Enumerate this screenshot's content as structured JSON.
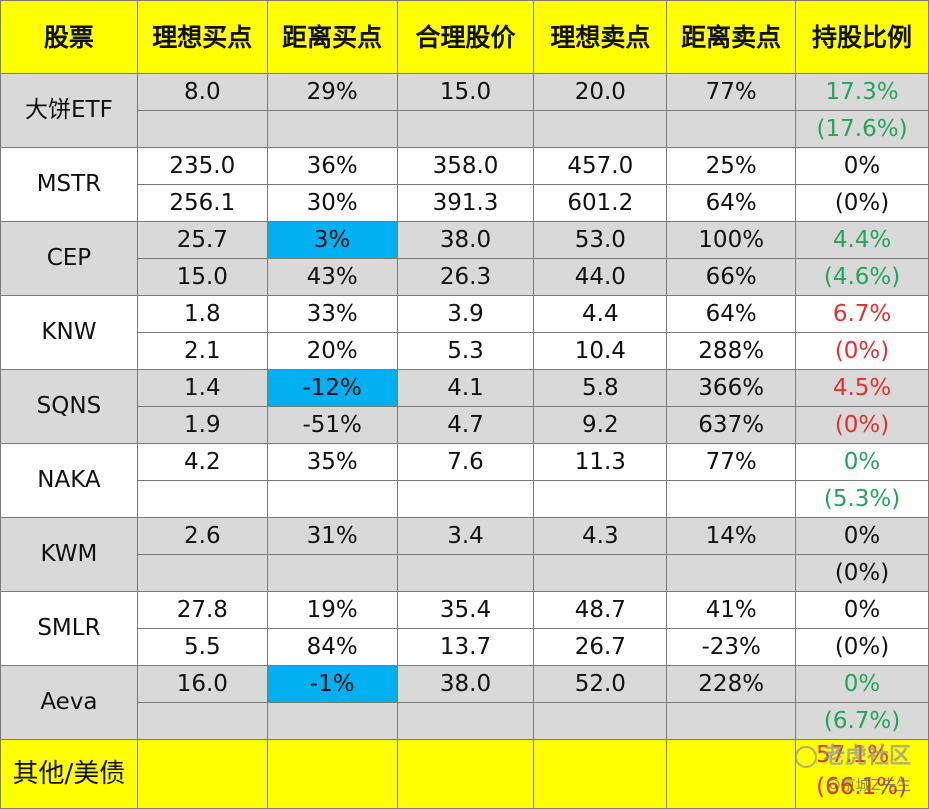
{
  "header": [
    "股票",
    "理想买点",
    "距离买点",
    "合理股价",
    "理想卖点",
    "距离卖点",
    "持股比例"
  ],
  "stocks": [
    {
      "name": "大饼ETF",
      "shade": "grey",
      "cn": true,
      "r1": [
        "8.0",
        "29%",
        "15.0",
        "20.0",
        "77%"
      ],
      "r2": [
        "",
        "",
        "",
        "",
        ""
      ],
      "hold": "17.3%",
      "hold_prev": "(17.6%)",
      "hold_color": "green",
      "hl": false
    },
    {
      "name": "MSTR",
      "shade": "white",
      "cn": false,
      "r1": [
        "235.0",
        "36%",
        "358.0",
        "457.0",
        "25%"
      ],
      "r2": [
        "256.1",
        "30%",
        "391.3",
        "601.2",
        "64%"
      ],
      "hold": "0%",
      "hold_prev": "(0%)",
      "hold_color": "black",
      "hl": false
    },
    {
      "name": "CEP",
      "shade": "grey",
      "cn": false,
      "r1": [
        "25.7",
        "3%",
        "38.0",
        "53.0",
        "100%"
      ],
      "r2": [
        "15.0",
        "43%",
        "26.3",
        "44.0",
        "66%"
      ],
      "hold": "4.4%",
      "hold_prev": "(4.6%)",
      "hold_color": "green",
      "hl": true
    },
    {
      "name": "KNW",
      "shade": "white",
      "cn": false,
      "r1": [
        "1.8",
        "33%",
        "3.9",
        "4.4",
        "64%"
      ],
      "r2": [
        "2.1",
        "20%",
        "5.3",
        "10.4",
        "288%"
      ],
      "hold": "6.7%",
      "hold_prev": "(0%)",
      "hold_color": "red",
      "hl": false
    },
    {
      "name": "SQNS",
      "shade": "grey",
      "cn": false,
      "r1": [
        "1.4",
        "-12%",
        "4.1",
        "5.8",
        "366%"
      ],
      "r2": [
        "1.9",
        "-51%",
        "4.7",
        "9.2",
        "637%"
      ],
      "hold": "4.5%",
      "hold_prev": "(0%)",
      "hold_color": "red",
      "hl": true
    },
    {
      "name": "NAKA",
      "shade": "white",
      "cn": false,
      "r1": [
        "4.2",
        "35%",
        "7.6",
        "11.3",
        "77%"
      ],
      "r2": [
        "",
        "",
        "",
        "",
        ""
      ],
      "hold": "0%",
      "hold_prev": "(5.3%)",
      "hold_color": "green",
      "hl": false
    },
    {
      "name": "KWM",
      "shade": "grey",
      "cn": false,
      "r1": [
        "2.6",
        "31%",
        "3.4",
        "4.3",
        "14%"
      ],
      "r2": [
        "",
        "",
        "",
        "",
        ""
      ],
      "hold": "0%",
      "hold_prev": "(0%)",
      "hold_color": "black",
      "hl": false
    },
    {
      "name": "SMLR",
      "shade": "white",
      "cn": false,
      "r1": [
        "27.8",
        "19%",
        "35.4",
        "48.7",
        "41%"
      ],
      "r2": [
        "5.5",
        "84%",
        "13.7",
        "26.7",
        "-23%"
      ],
      "hold": "0%",
      "hold_prev": "(0%)",
      "hold_color": "black",
      "hl": false
    },
    {
      "name": "Aeva",
      "shade": "grey",
      "cn": false,
      "r1": [
        "16.0",
        "-1%",
        "38.0",
        "52.0",
        "228%"
      ],
      "r2": [
        "",
        "",
        "",
        "",
        ""
      ],
      "hold": "0%",
      "hold_prev": "(6.7%)",
      "hold_color": "green",
      "hl": true
    }
  ],
  "footer": {
    "name": "其他/美债",
    "hold": "57.1%",
    "hold_prev": "(66.1%)"
  },
  "watermark": {
    "brand": "老虎社区",
    "author": "@京城Z先生"
  },
  "colors": {
    "header_bg": "#ffff00",
    "row_grey": "#d9d9d9",
    "highlight": "#00b0f0",
    "up": "#22a65a",
    "down": "#e0312f"
  }
}
